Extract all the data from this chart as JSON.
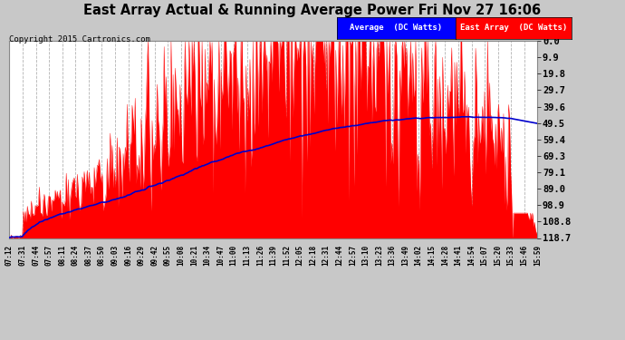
{
  "title": "East Array Actual & Running Average Power Fri Nov 27 16:06",
  "copyright": "Copyright 2015 Cartronics.com",
  "legend_avg": "Average  (DC Watts)",
  "legend_east": "East Array  (DC Watts)",
  "ylabel_right": [
    "118.7",
    "108.8",
    "98.9",
    "89.0",
    "79.1",
    "69.3",
    "59.4",
    "49.5",
    "39.6",
    "29.7",
    "19.8",
    "9.9",
    "0.0"
  ],
  "ymax": 118.7,
  "ymin": 0.0,
  "yticks": [
    0.0,
    9.9,
    19.8,
    29.7,
    39.6,
    49.5,
    59.4,
    69.3,
    79.1,
    89.0,
    98.9,
    108.8,
    118.7
  ],
  "xtick_labels": [
    "07:12",
    "07:31",
    "07:44",
    "07:57",
    "08:11",
    "08:24",
    "08:37",
    "08:50",
    "09:03",
    "09:16",
    "09:29",
    "09:42",
    "09:55",
    "10:08",
    "10:21",
    "10:34",
    "10:47",
    "11:00",
    "11:13",
    "11:26",
    "11:39",
    "11:52",
    "12:05",
    "12:18",
    "12:31",
    "12:44",
    "12:57",
    "13:10",
    "13:23",
    "13:36",
    "13:49",
    "14:02",
    "14:15",
    "14:28",
    "14:41",
    "14:54",
    "15:07",
    "15:20",
    "15:33",
    "15:46",
    "15:59"
  ],
  "plot_bg_color": "#ffffff",
  "grid_color": "#aaaaaa",
  "east_color": "#ff0000",
  "avg_color": "#0000cd",
  "title_color": "#000000",
  "outer_bg_color": "#c8c8c8",
  "legend_avg_bg": "#0000ff",
  "legend_east_bg": "#ff0000"
}
